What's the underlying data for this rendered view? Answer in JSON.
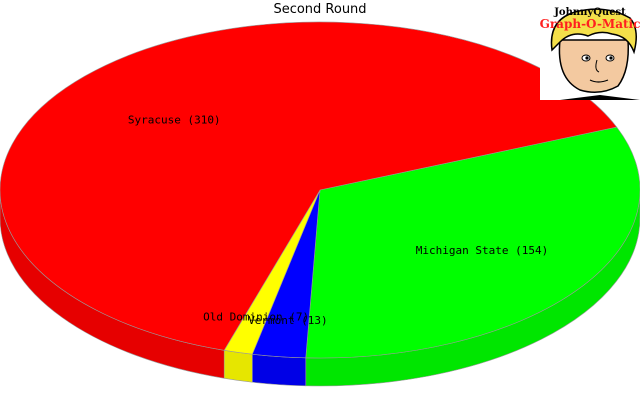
{
  "logo": {
    "line1": "JohnnyQuest",
    "line2": "Graph-O-Matic"
  },
  "chart_data": {
    "type": "pie",
    "title": "Second Round",
    "start_angle_deg": -22,
    "direction": "clockwise",
    "slices": [
      {
        "name": "Michigan State",
        "value": 154,
        "label": "Michigan State (154)",
        "color": "#00ff00"
      },
      {
        "name": "Vermont",
        "value": 13,
        "label": "Vermont (13)",
        "color": "#0000ff"
      },
      {
        "name": "Old Dominion",
        "value": 7,
        "label": "Old Dominion (7)",
        "color": "#ffff00"
      },
      {
        "name": "Syracuse",
        "value": 310,
        "label": "Syracuse (310)",
        "color": "#ff0000"
      }
    ]
  }
}
